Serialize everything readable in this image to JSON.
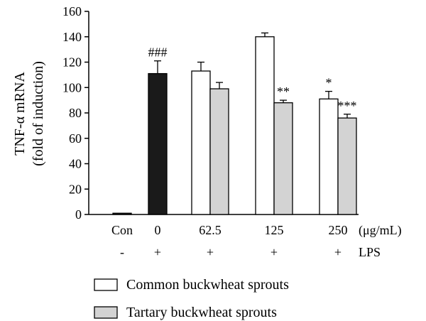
{
  "chart_data": {
    "type": "bar",
    "title": "",
    "xlabel": "",
    "ylabel_lines": [
      "TNF-α mRNA",
      "(fold of induction)"
    ],
    "ylim": [
      0,
      160
    ],
    "yticks": [
      0,
      20,
      40,
      60,
      80,
      100,
      120,
      140,
      160
    ],
    "unit_label": "(μg/mL)",
    "lps_name": "LPS",
    "legend_placement": "bottom",
    "grid": false,
    "groups": [
      {
        "category": "Con",
        "lps": "-",
        "bars": [
          {
            "series": 0,
            "value": 1,
            "error": 0,
            "sig": "",
            "color": "#1a1a1a"
          }
        ]
      },
      {
        "category": "0",
        "lps": "+",
        "bars": [
          {
            "series": 0,
            "value": 111,
            "error": 10,
            "sig": "###",
            "color": "#1a1a1a"
          }
        ]
      },
      {
        "category": "62.5",
        "lps": "+",
        "bars": [
          {
            "series": 1,
            "value": 113,
            "error": 7,
            "sig": "",
            "color": "#ffffff"
          },
          {
            "series": 2,
            "value": 99,
            "error": 5,
            "sig": "",
            "color": "#d3d3d3"
          }
        ]
      },
      {
        "category": "125",
        "lps": "+",
        "bars": [
          {
            "series": 1,
            "value": 140,
            "error": 3,
            "sig": "",
            "color": "#ffffff"
          },
          {
            "series": 2,
            "value": 88,
            "error": 2,
            "sig": "**",
            "color": "#d3d3d3"
          }
        ]
      },
      {
        "category": "250",
        "lps": "+",
        "bars": [
          {
            "series": 1,
            "value": 91,
            "error": 6,
            "sig": "*",
            "color": "#ffffff"
          },
          {
            "series": 2,
            "value": 76,
            "error": 3,
            "sig": "***",
            "color": "#d3d3d3"
          }
        ]
      }
    ],
    "series": [
      {
        "name": "",
        "color": "#1a1a1a",
        "legend": false
      },
      {
        "name": "Common buckwheat sprouts",
        "color": "#ffffff",
        "legend": true
      },
      {
        "name": "Tartary buckwheat sprouts",
        "color": "#d3d3d3",
        "legend": true
      }
    ]
  }
}
